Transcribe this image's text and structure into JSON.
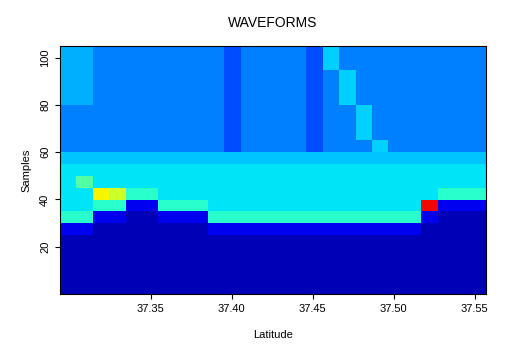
{
  "chart_data": {
    "type": "heatmap",
    "title": "WAVEFORMS",
    "x_label": "Latitude",
    "y_label": "Samples",
    "xlim": [
      37.294,
      37.557
    ],
    "ylim": [
      0,
      105
    ],
    "xticks": [
      37.35,
      {
        "value": 37.4,
        "label": "37.40"
      },
      37.45,
      {
        "value": 37.5,
        "label": "37.50"
      },
      37.55
    ],
    "yticks": [
      20,
      40,
      60,
      80,
      100
    ],
    "color": "jet",
    "color_range": [
      0,
      10
    ],
    "cells": [
      [
        0.5,
        0.5,
        0.5,
        0.5,
        0.5,
        0.5,
        0.5,
        0.5,
        0.5,
        0.5,
        0.5,
        0.5,
        0.5,
        0.5,
        0.5,
        0.5,
        0.5,
        0.5,
        0.5,
        0.5,
        0.5,
        0.5,
        0.5,
        0.5,
        0.5,
        0.5
      ],
      [
        0.5,
        0.5,
        0.5,
        0.5,
        0.5,
        0.5,
        0.5,
        0.5,
        0.5,
        0.5,
        0.5,
        0.5,
        0.5,
        0.5,
        0.5,
        0.5,
        0.5,
        0.5,
        0.5,
        0.5,
        0.5,
        0.5,
        0.5,
        0.5,
        0.5,
        0.5
      ],
      [
        0.5,
        0.5,
        0.5,
        0.5,
        0.5,
        0.5,
        0.5,
        0.5,
        0.5,
        0.5,
        0.5,
        0.5,
        0.5,
        0.5,
        0.5,
        0.5,
        0.5,
        0.5,
        0.5,
        0.5,
        0.5,
        0.5,
        0.5,
        0.5,
        0.5,
        0.5
      ],
      [
        0.5,
        0.5,
        0.5,
        0.5,
        0.5,
        0.5,
        0.5,
        0.5,
        0.5,
        0.5,
        0.5,
        0.5,
        0.5,
        0.5,
        0.5,
        0.5,
        0.5,
        0.5,
        0.5,
        0.5,
        0.5,
        0.5,
        0.5,
        0.5,
        0.5,
        0.5
      ],
      [
        0.5,
        0.5,
        0.5,
        0.5,
        0.5,
        0.5,
        0.5,
        0.5,
        0.5,
        0.5,
        0.5,
        0.5,
        0.5,
        0.5,
        0.5,
        0.5,
        0.5,
        0.5,
        0.5,
        0.5,
        0.5,
        0.5,
        0.5,
        0.5,
        0.5,
        0.5
      ],
      [
        1,
        1,
        0.5,
        0.5,
        0.5,
        0.5,
        0.5,
        0.5,
        0.5,
        1,
        1,
        1,
        1,
        1,
        1,
        1,
        1,
        1,
        1,
        1,
        1,
        1,
        0.5,
        0.5,
        0.5,
        0.5
      ],
      [
        4,
        4,
        1,
        1,
        0.5,
        0.5,
        1,
        1,
        1,
        4,
        4,
        4,
        4,
        4,
        4,
        4,
        4,
        4,
        4,
        4,
        4,
        4,
        1,
        0.5,
        0.5,
        0.5
      ],
      [
        3.5,
        3.5,
        4,
        4,
        1,
        1,
        4,
        4,
        4,
        3.5,
        3.5,
        3.5,
        3.5,
        3.5,
        3.5,
        3.5,
        3.5,
        3.5,
        3.5,
        3.5,
        3.5,
        3.5,
        9,
        1,
        1,
        1
      ],
      [
        3.5,
        3.5,
        6.5,
        6,
        4,
        4,
        3.5,
        3.5,
        3.5,
        3.5,
        3.5,
        3.5,
        3.5,
        3.5,
        3.5,
        3.5,
        3.5,
        3.5,
        3.5,
        3.5,
        3.5,
        3.5,
        3.5,
        4,
        4,
        4
      ],
      [
        3.5,
        4.5,
        3.5,
        3.5,
        3.5,
        3.5,
        3.5,
        3.5,
        3.5,
        3.5,
        3.5,
        3.5,
        3.5,
        3.5,
        3.5,
        3.5,
        3.5,
        3.5,
        3.5,
        3.5,
        3.5,
        3.5,
        3.5,
        3.5,
        3.5,
        3.5
      ],
      [
        3.5,
        3.5,
        3.5,
        3.5,
        3.5,
        3.5,
        3.5,
        3.5,
        3.5,
        3.5,
        3.5,
        3.5,
        3.5,
        3.5,
        3.5,
        3.5,
        3.5,
        3.5,
        3.5,
        3.5,
        3.5,
        3.5,
        3.5,
        3.5,
        3.5,
        3.5
      ],
      [
        3.2,
        3.2,
        3.2,
        3.2,
        3.2,
        3.2,
        3.2,
        3.2,
        3.2,
        3.2,
        3.2,
        3.2,
        3.2,
        3.2,
        3.2,
        3.2,
        3.2,
        3.2,
        3.2,
        3.2,
        3.2,
        3.2,
        3.2,
        3.2,
        3.2,
        3.2
      ],
      [
        2.5,
        2.5,
        2.5,
        2.5,
        2.5,
        2.5,
        2.5,
        2.5,
        2.5,
        2.5,
        2.0,
        2.5,
        2.5,
        2.5,
        2.5,
        2.0,
        2.5,
        2.5,
        2.5,
        3.3,
        2.5,
        2.5,
        2.5,
        2.5,
        2.5,
        2.5
      ],
      [
        2.5,
        2.5,
        2.5,
        2.5,
        2.5,
        2.5,
        2.5,
        2.5,
        2.5,
        2.5,
        2.0,
        2.5,
        2.5,
        2.5,
        2.5,
        2.0,
        2.5,
        2.5,
        3.3,
        2.5,
        2.5,
        2.5,
        2.5,
        2.5,
        2.5,
        2.5
      ],
      [
        2.5,
        2.5,
        2.5,
        2.5,
        2.5,
        2.5,
        2.5,
        2.5,
        2.5,
        2.5,
        2.0,
        2.5,
        2.5,
        2.5,
        2.5,
        2.0,
        2.5,
        2.5,
        3.3,
        2.5,
        2.5,
        2.5,
        2.5,
        2.5,
        2.5,
        2.5
      ],
      [
        2.5,
        2.5,
        2.5,
        2.5,
        2.5,
        2.5,
        2.5,
        2.5,
        2.5,
        2.5,
        2.0,
        2.5,
        2.5,
        2.5,
        2.5,
        2.0,
        2.5,
        2.5,
        3.3,
        2.5,
        2.5,
        2.5,
        2.5,
        2.5,
        2.5,
        2.5
      ],
      [
        3.0,
        3.0,
        2.5,
        2.5,
        2.5,
        2.5,
        2.5,
        2.5,
        2.5,
        2.5,
        2.0,
        2.5,
        2.5,
        2.5,
        2.5,
        2.0,
        2.5,
        3.3,
        2.5,
        2.5,
        2.5,
        2.5,
        2.5,
        2.5,
        2.5,
        2.5
      ],
      [
        3.0,
        3.0,
        2.5,
        2.5,
        2.5,
        2.5,
        2.5,
        2.5,
        2.5,
        2.5,
        2.0,
        2.5,
        2.5,
        2.5,
        2.5,
        2.0,
        2.5,
        3.3,
        2.5,
        2.5,
        2.5,
        2.5,
        2.5,
        2.5,
        2.5,
        2.5
      ],
      [
        3.0,
        3.0,
        2.5,
        2.5,
        2.5,
        2.5,
        2.5,
        2.5,
        2.5,
        2.5,
        2.0,
        2.5,
        2.5,
        2.5,
        2.5,
        2.0,
        2.5,
        3.3,
        2.5,
        2.5,
        2.5,
        2.5,
        2.5,
        2.5,
        2.5,
        2.5
      ],
      [
        3.0,
        3.0,
        2.5,
        2.5,
        2.5,
        2.5,
        2.5,
        2.5,
        2.5,
        2.5,
        2.0,
        2.5,
        2.5,
        2.5,
        2.5,
        2.0,
        3.3,
        2.5,
        2.5,
        2.5,
        2.5,
        2.5,
        2.5,
        2.5,
        2.5,
        2.5
      ],
      [
        3.0,
        3.0,
        2.5,
        2.5,
        2.5,
        2.5,
        2.5,
        2.5,
        2.5,
        2.5,
        2.0,
        2.5,
        2.5,
        2.5,
        2.5,
        2.0,
        3.3,
        2.5,
        2.5,
        2.5,
        2.5,
        2.5,
        2.5,
        2.5,
        2.5,
        2.5
      ]
    ]
  }
}
